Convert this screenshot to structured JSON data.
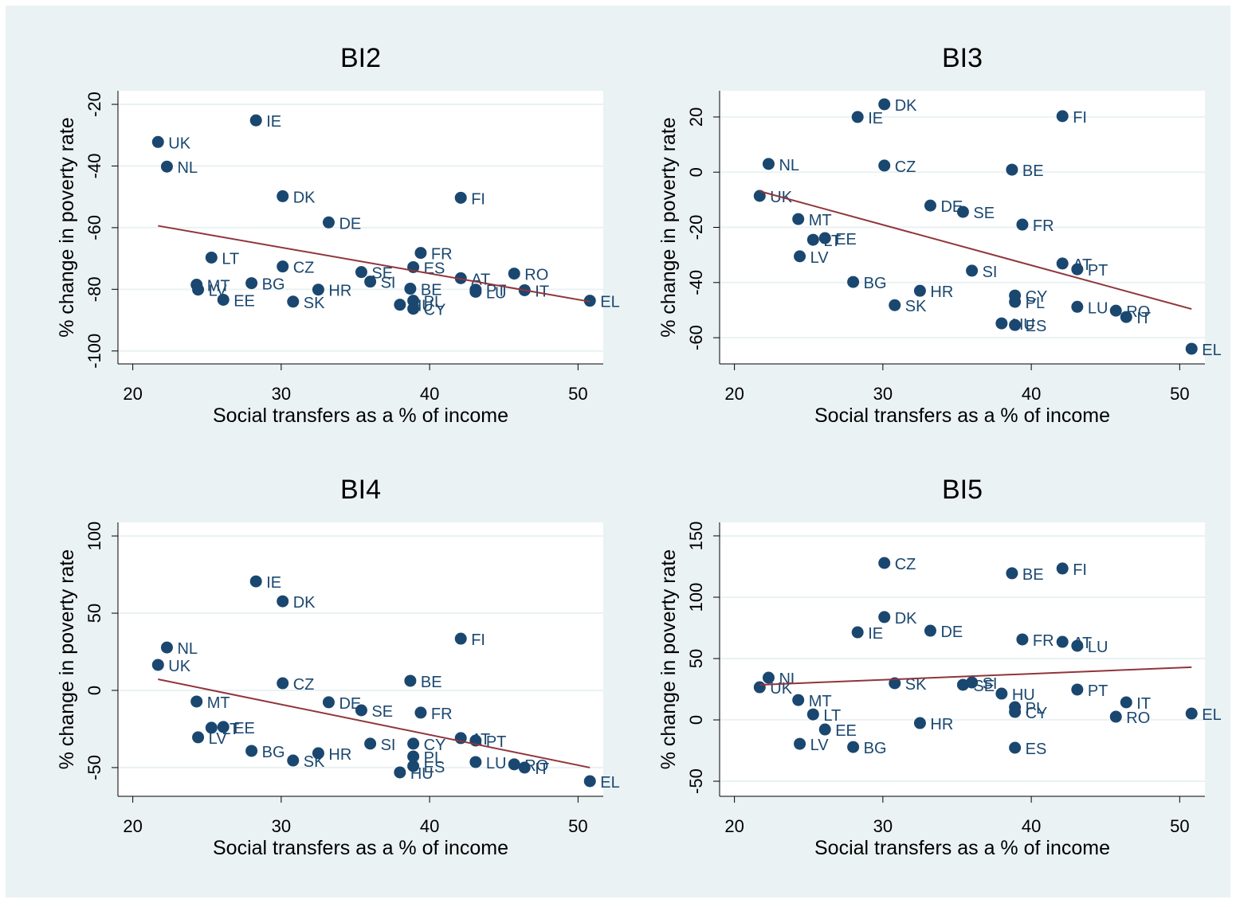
{
  "chart_data": [
    {
      "type": "scatter",
      "title": "BI2",
      "xlabel": "Social transfers as a % of income",
      "ylabel": "% change in poverty rate",
      "color": "#1a476f",
      "fit_color": "#90353b",
      "grid": true,
      "labels": [
        "UK",
        "NL",
        "IE",
        "DK",
        "DE",
        "LT",
        "MT",
        "LV",
        "EE",
        "BG",
        "CZ",
        "SK",
        "HR",
        "SE",
        "SI",
        "FR",
        "ES",
        "BE",
        "PL",
        "CY",
        "HU",
        "AT",
        "FI",
        "LU",
        "PT",
        "RO",
        "IT",
        "EL"
      ],
      "x": [
        21.7,
        22.3,
        28.3,
        30.1,
        33.2,
        25.3,
        24.3,
        24.4,
        26.1,
        28.0,
        30.1,
        30.8,
        32.5,
        35.4,
        36.0,
        39.4,
        38.9,
        38.7,
        38.9,
        38.9,
        38.0,
        42.1,
        42.1,
        43.1,
        43.1,
        45.7,
        46.4,
        50.8
      ],
      "y": [
        -32.2,
        -40.2,
        -25.2,
        -49.8,
        -58.3,
        -69.7,
        -78.5,
        -80.1,
        -83.4,
        -78.0,
        -72.6,
        -84.0,
        -80.1,
        -74.4,
        -77.5,
        -68.2,
        -72.8,
        -79.8,
        -83.7,
        -86.3,
        -85.0,
        -76.4,
        -50.3,
        -80.8,
        -80.1,
        -74.9,
        -80.3,
        -83.7
      ],
      "fit": {
        "x": [
          21.7,
          50.8
        ],
        "y": [
          -59.4,
          -84.0
        ]
      },
      "xlim": [
        19.0,
        51.7
      ],
      "xticks": [
        20,
        30,
        40,
        50
      ],
      "ylim": [
        -104.2,
        -15.6
      ],
      "yticks": [
        -100,
        -80,
        -60,
        -40,
        -20
      ]
    },
    {
      "type": "scatter",
      "title": "BI3",
      "xlabel": "Social transfers as a % of income",
      "ylabel": "% change in poverty rate",
      "color": "#1a476f",
      "fit_color": "#90353b",
      "grid": true,
      "labels": [
        "UK",
        "NL",
        "IE",
        "DK",
        "DE",
        "LT",
        "MT",
        "LV",
        "EE",
        "BG",
        "CZ",
        "SK",
        "HR",
        "SE",
        "SI",
        "FR",
        "ES",
        "BE",
        "PL",
        "CY",
        "HU",
        "AT",
        "FI",
        "LU",
        "PT",
        "RO",
        "IT",
        "EL"
      ],
      "x": [
        21.7,
        22.3,
        28.3,
        30.1,
        33.2,
        25.3,
        24.3,
        24.4,
        26.1,
        28.0,
        30.1,
        30.8,
        32.5,
        35.4,
        36.0,
        39.4,
        38.9,
        38.7,
        38.9,
        38.9,
        38.0,
        42.1,
        42.1,
        43.1,
        43.1,
        45.7,
        46.4,
        50.8
      ],
      "y": [
        -8.6,
        3.0,
        20.0,
        24.6,
        -12.1,
        -24.5,
        -17.0,
        -30.5,
        -23.9,
        -39.8,
        2.4,
        -48.2,
        -43.0,
        -14.4,
        -35.7,
        -19.0,
        -55.4,
        0.9,
        -47.0,
        -44.7,
        -54.8,
        -33.1,
        20.3,
        -48.8,
        -35.2,
        -50.2,
        -52.5,
        -64.0
      ],
      "fit": {
        "x": [
          21.7,
          50.8
        ],
        "y": [
          -6.9,
          -49.6
        ]
      },
      "xlim": [
        19.0,
        51.7
      ],
      "xticks": [
        20,
        30,
        40,
        50
      ],
      "ylim": [
        -69.5,
        29.5
      ],
      "yticks": [
        -60,
        -40,
        -20,
        0,
        20
      ]
    },
    {
      "type": "scatter",
      "title": "BI4",
      "xlabel": "Social transfers as a % of income",
      "ylabel": "% change in poverty rate",
      "color": "#1a476f",
      "fit_color": "#90353b",
      "grid": true,
      "labels": [
        "UK",
        "NL",
        "IE",
        "DK",
        "DE",
        "LT",
        "MT",
        "LV",
        "EE",
        "BG",
        "CZ",
        "SK",
        "HR",
        "SE",
        "SI",
        "FR",
        "ES",
        "BE",
        "PL",
        "CY",
        "HU",
        "AT",
        "FI",
        "LU",
        "PT",
        "RO",
        "IT",
        "EL"
      ],
      "x": [
        21.7,
        22.3,
        28.3,
        30.1,
        33.2,
        25.3,
        24.3,
        24.4,
        26.1,
        28.0,
        30.1,
        30.8,
        32.5,
        35.4,
        36.0,
        39.4,
        38.9,
        38.7,
        38.9,
        38.9,
        38.0,
        42.1,
        42.1,
        43.1,
        43.1,
        45.7,
        46.4,
        50.8
      ],
      "y": [
        16.5,
        27.8,
        70.6,
        57.7,
        -7.7,
        -24.2,
        -7.2,
        -30.4,
        -23.7,
        -39.2,
        4.6,
        -45.4,
        -40.7,
        -12.9,
        -34.5,
        -14.4,
        -49.0,
        6.2,
        -42.8,
        -34.5,
        -53.1,
        -30.9,
        33.5,
        -46.4,
        -32.5,
        -47.9,
        -50.0,
        -58.8
      ],
      "fit": {
        "x": [
          21.7,
          50.8
        ],
        "y": [
          7.2,
          -50.0
        ]
      },
      "xlim": [
        19.0,
        51.7
      ],
      "xticks": [
        20,
        30,
        40,
        50
      ],
      "ylim": [
        -68.6,
        108.8
      ],
      "yticks": [
        -50,
        0,
        50,
        100
      ]
    },
    {
      "type": "scatter",
      "title": "BI5",
      "xlabel": "Social transfers as a % of income",
      "ylabel": "% change in poverty rate",
      "color": "#1a476f",
      "fit_color": "#90353b",
      "grid": true,
      "labels": [
        "UK",
        "NL",
        "IE",
        "DK",
        "DE",
        "LT",
        "MT",
        "LV",
        "EE",
        "BG",
        "CZ",
        "SK",
        "HR",
        "SE",
        "SI",
        "FR",
        "ES",
        "BE",
        "PL",
        "CY",
        "HU",
        "AT",
        "FI",
        "LU",
        "PT",
        "RO",
        "IT",
        "EL"
      ],
      "x": [
        21.7,
        22.3,
        28.3,
        30.1,
        33.2,
        25.3,
        24.3,
        24.4,
        26.1,
        28.0,
        30.1,
        30.8,
        32.5,
        35.4,
        36.0,
        39.4,
        38.9,
        38.7,
        38.9,
        38.9,
        38.0,
        42.1,
        42.1,
        43.1,
        43.1,
        45.7,
        46.4,
        50.8
      ],
      "y": [
        26.6,
        34.4,
        71.4,
        83.8,
        72.7,
        4.5,
        16.2,
        -19.5,
        -7.8,
        -22.1,
        127.9,
        29.9,
        -2.6,
        28.6,
        30.5,
        65.6,
        -22.7,
        119.5,
        10.4,
        6.5,
        21.4,
        63.6,
        123.4,
        60.4,
        24.7,
        2.6,
        14.3,
        5.2
      ],
      "fit": {
        "x": [
          21.7,
          50.8
        ],
        "y": [
          28.6,
          42.9
        ]
      },
      "xlim": [
        19.0,
        51.7
      ],
      "xticks": [
        20,
        30,
        40,
        50
      ],
      "ylim": [
        -62.3,
        161.0
      ],
      "yticks": [
        -50,
        0,
        50,
        100,
        150
      ]
    }
  ]
}
